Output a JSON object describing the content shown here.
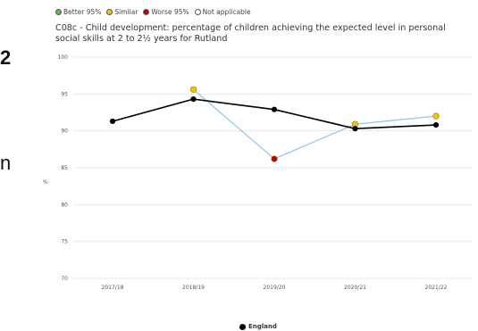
{
  "fragments": {
    "left_top": "2",
    "left_mid": "n"
  },
  "legend_top": [
    {
      "label": "Better 95%",
      "color": "#5cb85c"
    },
    {
      "label": "Similar",
      "color": "#f5c400"
    },
    {
      "label": "Worse 95%",
      "color": "#c00000"
    },
    {
      "label": "Not applicable",
      "color": "#ffffff"
    }
  ],
  "chart_data": {
    "type": "line",
    "title": "C08c - Child development: percentage of children achieving the expected level in personal social skills at 2 to 2½ years for Rutland",
    "ylabel": "%",
    "xlabel": "",
    "ylim": [
      70,
      100
    ],
    "yticks": [
      70,
      75,
      80,
      85,
      90,
      95,
      100
    ],
    "categories": [
      "2017/18",
      "2018/19",
      "2019/20",
      "2020/21",
      "2021/22"
    ],
    "series": [
      {
        "name": "England",
        "color": "#000000",
        "values": [
          91.3,
          94.3,
          92.9,
          90.3,
          90.8
        ]
      },
      {
        "color": "#8fc3e8",
        "values": [
          null,
          95.6,
          86.2,
          90.9,
          92.0
        ],
        "marker_colors": [
          null,
          "#f5c400",
          "#c00000",
          "#f5c400",
          "#f5c400"
        ]
      }
    ],
    "legend": "bottom",
    "grid": true
  }
}
